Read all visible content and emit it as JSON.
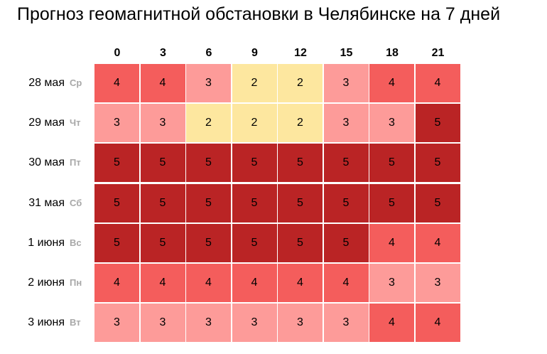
{
  "title": "Прогноз геомагнитной обстановки в Челябинске на 7 дней",
  "colors": {
    "kp2": "#fde79f",
    "kp3": "#fd9b99",
    "kp4": "#f45d5c",
    "kp5": "#ba2425"
  },
  "chart_data": {
    "type": "heatmap",
    "title": "Прогноз геомагнитной обстановки в Челябинске на 7 дней",
    "columns": [
      "0",
      "3",
      "6",
      "9",
      "12",
      "15",
      "18",
      "21"
    ],
    "rows": [
      {
        "date": "28 мая",
        "weekday": "Ср",
        "values": [
          4,
          4,
          3,
          2,
          2,
          3,
          4,
          4
        ]
      },
      {
        "date": "29 мая",
        "weekday": "Чт",
        "values": [
          3,
          3,
          2,
          2,
          2,
          3,
          3,
          5
        ]
      },
      {
        "date": "30 мая",
        "weekday": "Пт",
        "values": [
          5,
          5,
          5,
          5,
          5,
          5,
          5,
          5
        ]
      },
      {
        "date": "31 мая",
        "weekday": "Сб",
        "values": [
          5,
          5,
          5,
          5,
          5,
          5,
          5,
          5
        ]
      },
      {
        "date": "1 июня",
        "weekday": "Вс",
        "values": [
          5,
          5,
          5,
          5,
          5,
          5,
          4,
          4
        ]
      },
      {
        "date": "2 июня",
        "weekday": "Пн",
        "values": [
          4,
          4,
          4,
          4,
          4,
          4,
          3,
          3
        ]
      },
      {
        "date": "3 июня",
        "weekday": "Вт",
        "values": [
          3,
          3,
          3,
          3,
          3,
          3,
          4,
          4
        ]
      }
    ]
  }
}
